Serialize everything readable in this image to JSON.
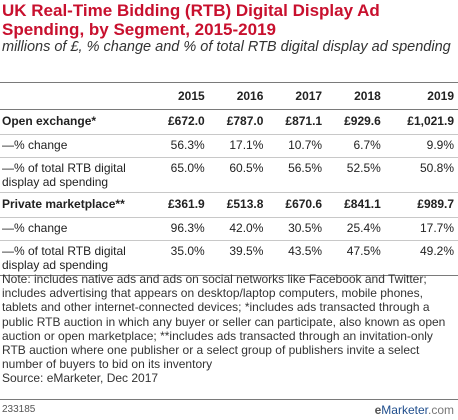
{
  "chart_data": {
    "type": "table",
    "title": "UK Real-Time Bidding (RTB) Digital Display Ad Spending, by Segment, 2015-2019",
    "subtitle": "millions of £, % change and % of total RTB digital display ad spending",
    "columns": [
      "2015",
      "2016",
      "2017",
      "2018",
      "2019"
    ],
    "rows": [
      {
        "label": "Open exchange*",
        "kind": "segment",
        "values": [
          "£672.0",
          "£787.0",
          "£871.1",
          "£929.6",
          "£1,021.9"
        ]
      },
      {
        "label": "—% change",
        "kind": "change",
        "values": [
          "56.3%",
          "17.1%",
          "10.7%",
          "6.7%",
          "9.9%"
        ]
      },
      {
        "label": "—% of total RTB digital display ad spending",
        "kind": "share",
        "values": [
          "65.0%",
          "60.5%",
          "56.5%",
          "52.5%",
          "50.8%"
        ]
      },
      {
        "label": "Private marketplace**",
        "kind": "segment",
        "values": [
          "£361.9",
          "£513.8",
          "£670.6",
          "£841.1",
          "£989.7"
        ]
      },
      {
        "label": "—% change",
        "kind": "change",
        "values": [
          "96.3%",
          "42.0%",
          "30.5%",
          "25.4%",
          "17.7%"
        ]
      },
      {
        "label": "—% of total RTB digital display ad spending",
        "kind": "share",
        "values": [
          "35.0%",
          "39.5%",
          "43.5%",
          "47.5%",
          "49.2%"
        ]
      }
    ]
  },
  "note": "Note: includes native ads and ads on social networks like Facebook and Twitter; includes advertising that appears on desktop/laptop computers, mobile phones, tablets and other internet-connected devices; *includes ads transacted through a public RTB auction in which any buyer or seller can participate, also known as open auction or open marketplace; **includes ads transacted through an invitation-only RTB auction where one publisher or a select group of publishers invite a select number of buyers to bid on its inventory",
  "source": "Source: eMarketer, Dec 2017",
  "chart_id": "233185",
  "logo": {
    "e": "e",
    "rest": "Marketer",
    "com": ".com"
  },
  "colors": {
    "title": "#c8102e",
    "brand": "#1e4d8c"
  }
}
